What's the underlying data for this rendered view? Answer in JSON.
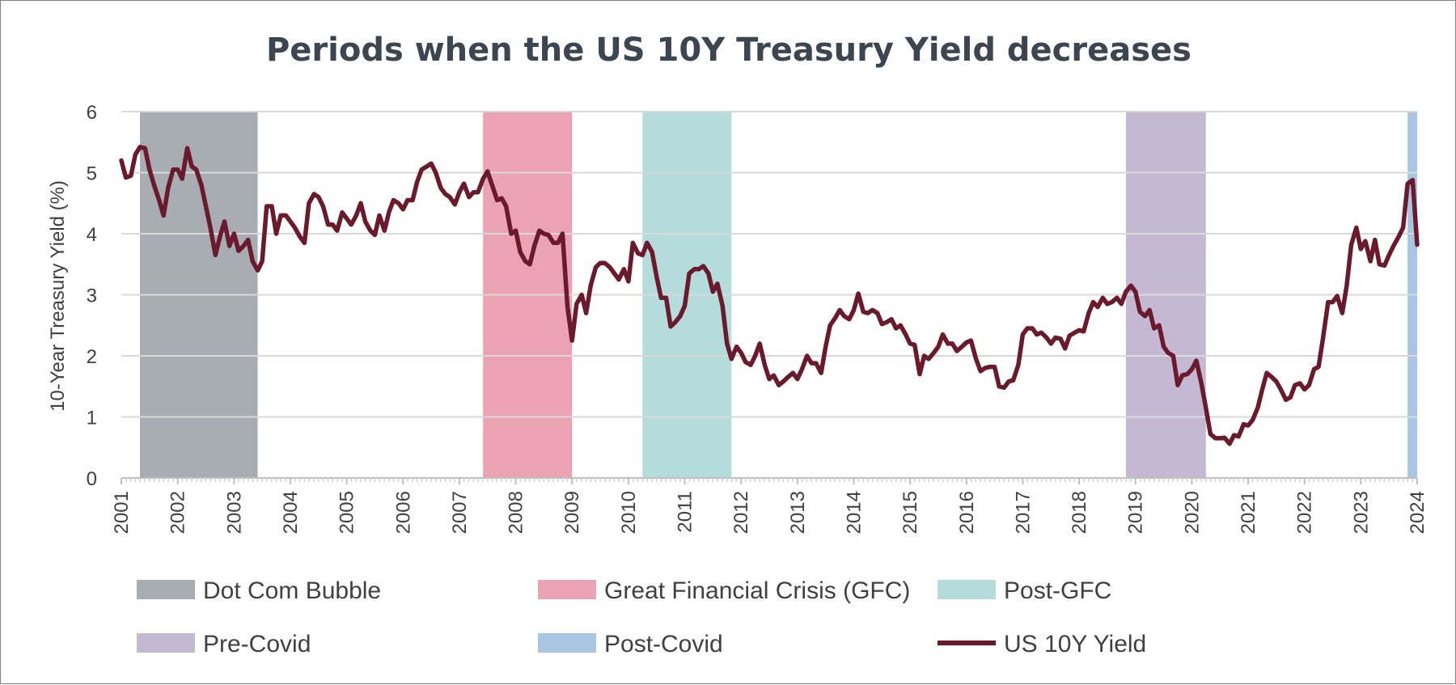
{
  "chart_data": {
    "type": "line",
    "title": "Periods when the US 10Y Treasury Yield decreases",
    "ylabel": "10-Year Treasury Yield (%)",
    "xlabel": "",
    "xlim": [
      2001,
      2024
    ],
    "ylim": [
      0,
      6
    ],
    "y_ticks": [
      "0",
      "1",
      "2",
      "3",
      "4",
      "5",
      "6"
    ],
    "x_ticks": [
      "2001",
      "2002",
      "2003",
      "2004",
      "2005",
      "2006",
      "2007",
      "2008",
      "2009",
      "2010",
      "2011",
      "2012",
      "2013",
      "2014",
      "2015",
      "2016",
      "2017",
      "2018",
      "2019",
      "2020",
      "2021",
      "2022",
      "2023",
      "2024"
    ],
    "grid": true,
    "legend_position": "bottom",
    "periods": [
      {
        "name": "Dot Com Bubble",
        "start": 2001.33,
        "end": 2003.42,
        "color": "#a8adb4"
      },
      {
        "name": "Great Financial Crisis (GFC)",
        "start": 2007.42,
        "end": 2009.0,
        "color": "#eba3b3"
      },
      {
        "name": "Post-GFC",
        "start": 2010.25,
        "end": 2011.83,
        "color": "#b4dcdb"
      },
      {
        "name": "Pre-Covid",
        "start": 2018.83,
        "end": 2020.25,
        "color": "#c5b8d2"
      },
      {
        "name": "Post-Covid",
        "start": 2023.83,
        "end": 2024.0,
        "color": "#a8c6e4"
      }
    ],
    "series": [
      {
        "name": "US 10Y Yield",
        "color": "#6b1a2e",
        "points": [
          [
            2001.0,
            5.2
          ],
          [
            2001.08,
            4.92
          ],
          [
            2001.17,
            4.95
          ],
          [
            2001.25,
            5.3
          ],
          [
            2001.33,
            5.42
          ],
          [
            2001.42,
            5.4
          ],
          [
            2001.5,
            5.05
          ],
          [
            2001.58,
            4.8
          ],
          [
            2001.67,
            4.55
          ],
          [
            2001.75,
            4.3
          ],
          [
            2001.83,
            4.75
          ],
          [
            2001.92,
            5.05
          ],
          [
            2002.0,
            5.05
          ],
          [
            2002.08,
            4.9
          ],
          [
            2002.17,
            5.4
          ],
          [
            2002.25,
            5.1
          ],
          [
            2002.33,
            5.05
          ],
          [
            2002.42,
            4.8
          ],
          [
            2002.5,
            4.45
          ],
          [
            2002.58,
            4.1
          ],
          [
            2002.67,
            3.65
          ],
          [
            2002.75,
            3.95
          ],
          [
            2002.83,
            4.2
          ],
          [
            2002.92,
            3.8
          ],
          [
            2003.0,
            4.0
          ],
          [
            2003.08,
            3.72
          ],
          [
            2003.17,
            3.8
          ],
          [
            2003.25,
            3.9
          ],
          [
            2003.33,
            3.55
          ],
          [
            2003.42,
            3.4
          ],
          [
            2003.5,
            3.55
          ],
          [
            2003.58,
            4.45
          ],
          [
            2003.67,
            4.45
          ],
          [
            2003.75,
            4.0
          ],
          [
            2003.83,
            4.3
          ],
          [
            2003.92,
            4.3
          ],
          [
            2004.0,
            4.2
          ],
          [
            2004.08,
            4.1
          ],
          [
            2004.17,
            3.95
          ],
          [
            2004.25,
            3.85
          ],
          [
            2004.33,
            4.5
          ],
          [
            2004.42,
            4.65
          ],
          [
            2004.5,
            4.6
          ],
          [
            2004.58,
            4.45
          ],
          [
            2004.67,
            4.15
          ],
          [
            2004.75,
            4.15
          ],
          [
            2004.83,
            4.05
          ],
          [
            2004.92,
            4.35
          ],
          [
            2005.0,
            4.25
          ],
          [
            2005.08,
            4.15
          ],
          [
            2005.17,
            4.3
          ],
          [
            2005.25,
            4.5
          ],
          [
            2005.33,
            4.2
          ],
          [
            2005.42,
            4.05
          ],
          [
            2005.5,
            3.98
          ],
          [
            2005.58,
            4.3
          ],
          [
            2005.67,
            4.05
          ],
          [
            2005.75,
            4.35
          ],
          [
            2005.83,
            4.55
          ],
          [
            2005.92,
            4.5
          ],
          [
            2006.0,
            4.4
          ],
          [
            2006.08,
            4.55
          ],
          [
            2006.17,
            4.55
          ],
          [
            2006.25,
            4.85
          ],
          [
            2006.33,
            5.05
          ],
          [
            2006.42,
            5.1
          ],
          [
            2006.5,
            5.15
          ],
          [
            2006.58,
            5.0
          ],
          [
            2006.67,
            4.75
          ],
          [
            2006.75,
            4.65
          ],
          [
            2006.83,
            4.6
          ],
          [
            2006.92,
            4.48
          ],
          [
            2007.0,
            4.68
          ],
          [
            2007.08,
            4.82
          ],
          [
            2007.17,
            4.6
          ],
          [
            2007.25,
            4.68
          ],
          [
            2007.33,
            4.68
          ],
          [
            2007.42,
            4.9
          ],
          [
            2007.5,
            5.02
          ],
          [
            2007.58,
            4.8
          ],
          [
            2007.67,
            4.55
          ],
          [
            2007.75,
            4.58
          ],
          [
            2007.83,
            4.45
          ],
          [
            2007.92,
            4.0
          ],
          [
            2008.0,
            4.05
          ],
          [
            2008.08,
            3.7
          ],
          [
            2008.17,
            3.55
          ],
          [
            2008.25,
            3.5
          ],
          [
            2008.33,
            3.8
          ],
          [
            2008.42,
            4.05
          ],
          [
            2008.5,
            4.0
          ],
          [
            2008.58,
            3.98
          ],
          [
            2008.67,
            3.85
          ],
          [
            2008.75,
            3.85
          ],
          [
            2008.83,
            4.0
          ],
          [
            2008.92,
            2.8
          ],
          [
            2009.0,
            2.25
          ],
          [
            2009.08,
            2.85
          ],
          [
            2009.17,
            3.0
          ],
          [
            2009.25,
            2.7
          ],
          [
            2009.33,
            3.15
          ],
          [
            2009.42,
            3.45
          ],
          [
            2009.5,
            3.52
          ],
          [
            2009.58,
            3.52
          ],
          [
            2009.67,
            3.45
          ],
          [
            2009.75,
            3.35
          ],
          [
            2009.83,
            3.25
          ],
          [
            2009.92,
            3.42
          ],
          [
            2010.0,
            3.22
          ],
          [
            2010.08,
            3.85
          ],
          [
            2010.17,
            3.68
          ],
          [
            2010.25,
            3.65
          ],
          [
            2010.33,
            3.85
          ],
          [
            2010.42,
            3.7
          ],
          [
            2010.5,
            3.3
          ],
          [
            2010.58,
            2.95
          ],
          [
            2010.67,
            2.95
          ],
          [
            2010.75,
            2.48
          ],
          [
            2010.83,
            2.55
          ],
          [
            2010.92,
            2.65
          ],
          [
            2011.0,
            2.82
          ],
          [
            2011.08,
            3.35
          ],
          [
            2011.17,
            3.42
          ],
          [
            2011.25,
            3.42
          ],
          [
            2011.33,
            3.47
          ],
          [
            2011.42,
            3.35
          ],
          [
            2011.5,
            3.05
          ],
          [
            2011.58,
            3.18
          ],
          [
            2011.67,
            2.82
          ],
          [
            2011.75,
            2.2
          ],
          [
            2011.83,
            1.95
          ],
          [
            2011.92,
            2.15
          ],
          [
            2012.0,
            2.05
          ],
          [
            2012.08,
            1.9
          ],
          [
            2012.17,
            1.85
          ],
          [
            2012.25,
            2.0
          ],
          [
            2012.33,
            2.2
          ],
          [
            2012.42,
            1.85
          ],
          [
            2012.5,
            1.62
          ],
          [
            2012.58,
            1.68
          ],
          [
            2012.67,
            1.52
          ],
          [
            2012.75,
            1.58
          ],
          [
            2012.83,
            1.65
          ],
          [
            2012.92,
            1.72
          ],
          [
            2013.0,
            1.62
          ],
          [
            2013.08,
            1.78
          ],
          [
            2013.17,
            2.0
          ],
          [
            2013.25,
            1.88
          ],
          [
            2013.33,
            1.88
          ],
          [
            2013.42,
            1.72
          ],
          [
            2013.5,
            2.15
          ],
          [
            2013.58,
            2.5
          ],
          [
            2013.67,
            2.62
          ],
          [
            2013.75,
            2.75
          ],
          [
            2013.83,
            2.65
          ],
          [
            2013.92,
            2.6
          ],
          [
            2014.0,
            2.75
          ],
          [
            2014.08,
            3.02
          ],
          [
            2014.17,
            2.72
          ],
          [
            2014.25,
            2.7
          ],
          [
            2014.33,
            2.75
          ],
          [
            2014.42,
            2.7
          ],
          [
            2014.5,
            2.52
          ],
          [
            2014.58,
            2.55
          ],
          [
            2014.67,
            2.6
          ],
          [
            2014.75,
            2.45
          ],
          [
            2014.83,
            2.5
          ],
          [
            2014.92,
            2.35
          ],
          [
            2015.0,
            2.2
          ],
          [
            2015.08,
            2.18
          ],
          [
            2015.17,
            1.7
          ],
          [
            2015.25,
            2.0
          ],
          [
            2015.33,
            1.95
          ],
          [
            2015.42,
            2.05
          ],
          [
            2015.5,
            2.15
          ],
          [
            2015.58,
            2.35
          ],
          [
            2015.67,
            2.2
          ],
          [
            2015.75,
            2.2
          ],
          [
            2015.83,
            2.08
          ],
          [
            2015.92,
            2.15
          ],
          [
            2016.0,
            2.22
          ],
          [
            2016.08,
            2.25
          ],
          [
            2016.17,
            1.95
          ],
          [
            2016.25,
            1.75
          ],
          [
            2016.33,
            1.8
          ],
          [
            2016.42,
            1.82
          ],
          [
            2016.5,
            1.82
          ],
          [
            2016.58,
            1.5
          ],
          [
            2016.67,
            1.48
          ],
          [
            2016.75,
            1.58
          ],
          [
            2016.83,
            1.6
          ],
          [
            2016.92,
            1.85
          ],
          [
            2017.0,
            2.35
          ],
          [
            2017.08,
            2.45
          ],
          [
            2017.17,
            2.45
          ],
          [
            2017.25,
            2.35
          ],
          [
            2017.33,
            2.38
          ],
          [
            2017.42,
            2.3
          ],
          [
            2017.5,
            2.2
          ],
          [
            2017.58,
            2.3
          ],
          [
            2017.67,
            2.28
          ],
          [
            2017.75,
            2.12
          ],
          [
            2017.83,
            2.33
          ],
          [
            2017.92,
            2.38
          ],
          [
            2018.0,
            2.42
          ],
          [
            2018.08,
            2.4
          ],
          [
            2018.17,
            2.7
          ],
          [
            2018.25,
            2.88
          ],
          [
            2018.33,
            2.8
          ],
          [
            2018.42,
            2.95
          ],
          [
            2018.5,
            2.85
          ],
          [
            2018.58,
            2.88
          ],
          [
            2018.67,
            2.95
          ],
          [
            2018.75,
            2.85
          ],
          [
            2018.83,
            3.05
          ],
          [
            2018.92,
            3.15
          ],
          [
            2019.0,
            3.05
          ],
          [
            2019.08,
            2.72
          ],
          [
            2019.17,
            2.65
          ],
          [
            2019.25,
            2.75
          ],
          [
            2019.33,
            2.45
          ],
          [
            2019.42,
            2.5
          ],
          [
            2019.5,
            2.15
          ],
          [
            2019.58,
            2.05
          ],
          [
            2019.67,
            2.0
          ],
          [
            2019.75,
            1.52
          ],
          [
            2019.83,
            1.68
          ],
          [
            2019.92,
            1.7
          ],
          [
            2020.0,
            1.78
          ],
          [
            2020.08,
            1.92
          ],
          [
            2020.17,
            1.55
          ],
          [
            2020.25,
            1.15
          ],
          [
            2020.33,
            0.72
          ],
          [
            2020.42,
            0.65
          ],
          [
            2020.5,
            0.65
          ],
          [
            2020.58,
            0.66
          ],
          [
            2020.67,
            0.56
          ],
          [
            2020.75,
            0.7
          ],
          [
            2020.83,
            0.68
          ],
          [
            2020.92,
            0.88
          ],
          [
            2021.0,
            0.86
          ],
          [
            2021.08,
            0.95
          ],
          [
            2021.17,
            1.15
          ],
          [
            2021.25,
            1.45
          ],
          [
            2021.33,
            1.72
          ],
          [
            2021.42,
            1.65
          ],
          [
            2021.5,
            1.58
          ],
          [
            2021.58,
            1.45
          ],
          [
            2021.67,
            1.28
          ],
          [
            2021.75,
            1.32
          ],
          [
            2021.83,
            1.52
          ],
          [
            2021.92,
            1.55
          ],
          [
            2022.0,
            1.45
          ],
          [
            2022.08,
            1.52
          ],
          [
            2022.17,
            1.78
          ],
          [
            2022.25,
            1.82
          ],
          [
            2022.33,
            2.3
          ],
          [
            2022.42,
            2.88
          ],
          [
            2022.5,
            2.88
          ],
          [
            2022.58,
            2.98
          ],
          [
            2022.67,
            2.7
          ],
          [
            2022.75,
            3.15
          ],
          [
            2022.83,
            3.82
          ],
          [
            2022.92,
            4.1
          ],
          [
            2023.0,
            3.75
          ],
          [
            2023.08,
            3.88
          ],
          [
            2023.17,
            3.55
          ],
          [
            2023.25,
            3.9
          ],
          [
            2023.33,
            3.5
          ],
          [
            2023.42,
            3.48
          ],
          [
            2023.5,
            3.65
          ],
          [
            2023.58,
            3.8
          ],
          [
            2023.67,
            3.95
          ],
          [
            2023.75,
            4.1
          ],
          [
            2023.83,
            4.82
          ],
          [
            2023.92,
            4.88
          ],
          [
            2024.0,
            3.82
          ]
        ]
      }
    ]
  }
}
